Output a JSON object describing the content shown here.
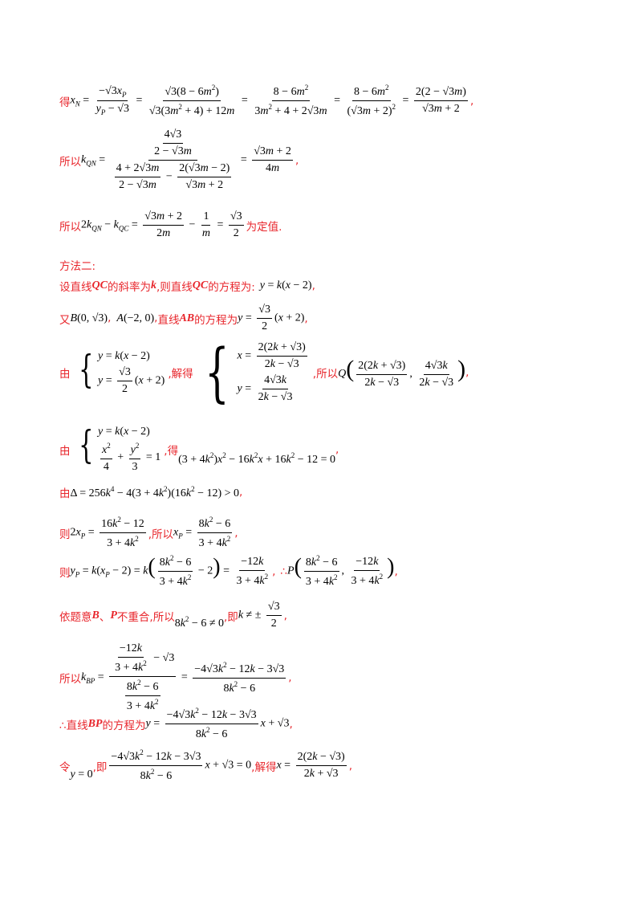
{
  "lines": {
    "l1_prefix": "得",
    "l1_eq": "x_N = −√3x_P/(y_P − √3) = √3(8 − 6m²)/(√3(3m² + 4) + 12m) = (8 − 6m²)/(3m² + 4 + 2√3m) = (8 − 6m²)/(√3m + 2)² = 2(2 − √3m)/(√3m + 2)",
    "l1_end": ",",
    "l2_prefix": "所以",
    "l2_end": ",",
    "l3_prefix": "所以",
    "l3_suffix": "为定值.",
    "l4": "方法二:",
    "l5_a": "设直线",
    "l5_b": "QC",
    "l5_c": "的斜率为",
    "l5_d": "k",
    "l5_e": ",则直线",
    "l5_f": "QC",
    "l5_g": "的方程为:",
    "l5_end": ",",
    "l6_a": "又",
    "l6_b": "直线",
    "l6_c": "AB",
    "l6_d": "的方程为",
    "l6_end": ",",
    "l7_a": "由",
    "l7_b": ",解得",
    "l7_c": ",所以",
    "l7_end": ",",
    "l8_a": "由",
    "l8_b": ",得",
    "l8_end": ",",
    "l9_a": "由",
    "l9_end": ",",
    "l10_a": "则",
    "l10_b": ",所以",
    "l10_end": ",",
    "l11_a": "则",
    "l11_b": ",",
    "l11_c": "∴",
    "l11_end": ",",
    "l12_a": "依题意",
    "l12_b": "B",
    "l12_c": "、",
    "l12_d": "P",
    "l12_e": "不重合,所以",
    "l12_f": ",即",
    "l12_end": ",",
    "l13_a": "所以",
    "l13_end": ",",
    "l14_a": "∴直线",
    "l14_b": "BP",
    "l14_c": "的方程为",
    "l14_end": ",",
    "l15_a": "令",
    "l15_b": ",即",
    "l15_c": ",解得",
    "l15_end": ","
  }
}
